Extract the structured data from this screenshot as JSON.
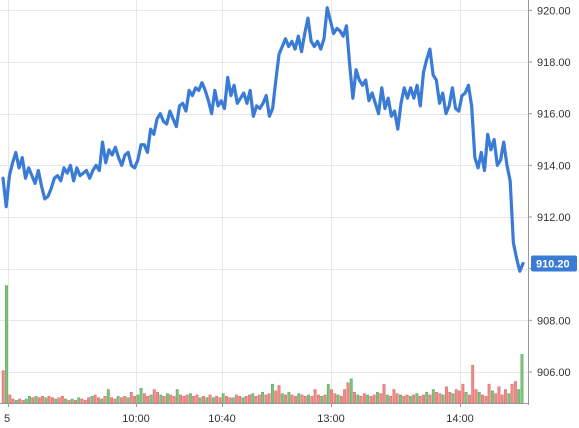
{
  "chart_data": {
    "type": "line",
    "title": "",
    "colors": {
      "line": "#3a7bd5",
      "volume_up": "#7cc47c",
      "volume_down": "#ef8a8a",
      "grid": "#e6e6e6",
      "price_tag": "#3a7bd5"
    },
    "x_tick_labels": [
      "5",
      "10:00",
      "10:40",
      "13:00",
      "14:00"
    ],
    "y_ticks": [
      906.0,
      908.0,
      910.0,
      912.0,
      914.0,
      916.0,
      918.0,
      920.0
    ],
    "y_tick_labels": [
      "906.00",
      "908.00",
      "",
      "912.00",
      "914.00",
      "916.00",
      "918.00",
      "920.00"
    ],
    "ylim": [
      904.8,
      920.4
    ],
    "last_price": 910.2,
    "last_price_label": "910.20",
    "grid": true,
    "series": [
      {
        "values": [
          913.5,
          912.4,
          913.6,
          914.1,
          914.5,
          913.9,
          914.3,
          913.5,
          913.9,
          913.6,
          913.3,
          913.8,
          913.2,
          912.7,
          912.8,
          913.1,
          913.5,
          913.6,
          913.4,
          913.9,
          913.7,
          914.0,
          913.4,
          913.9,
          913.6,
          913.7,
          913.8,
          913.5,
          913.8,
          914.0,
          913.8,
          914.9,
          914.1,
          914.6,
          914.4,
          914.7,
          914.3,
          914.0,
          914.4,
          914.5,
          914.0,
          913.9,
          914.2,
          914.8,
          914.8,
          914.5,
          915.4,
          915.2,
          915.8,
          916.0,
          915.7,
          915.6,
          916.1,
          915.8,
          915.5,
          916.3,
          916.4,
          916.1,
          916.9,
          916.7,
          917.0,
          916.9,
          917.2,
          916.9,
          916.5,
          916.0,
          916.9,
          916.3,
          916.5,
          916.2,
          917.4,
          916.7,
          917.1,
          916.4,
          916.6,
          916.8,
          916.4,
          916.9,
          915.9,
          916.3,
          916.2,
          916.4,
          916.7,
          915.9,
          916.2,
          917.3,
          918.3,
          918.6,
          918.9,
          918.6,
          918.8,
          918.5,
          919.0,
          918.4,
          919.1,
          919.7,
          918.8,
          918.6,
          918.8,
          918.5,
          918.9,
          920.1,
          919.6,
          919.1,
          919.3,
          919.2,
          919.0,
          919.4,
          917.9,
          916.6,
          917.7,
          917.3,
          917.1,
          917.3,
          916.5,
          916.8,
          916.4,
          916.0,
          917.0,
          916.2,
          916.6,
          915.9,
          916.1,
          915.4,
          916.4,
          917.0,
          916.6,
          917.0,
          916.6,
          917.1,
          916.3,
          917.6,
          918.1,
          918.5,
          917.5,
          917.3,
          916.4,
          916.8,
          916.0,
          916.3,
          917.0,
          916.2,
          916.1,
          916.7,
          916.8,
          917.1,
          916.3,
          914.3,
          913.9,
          914.5,
          913.8,
          915.2,
          914.6,
          915.0,
          914.0,
          914.2,
          914.9,
          914.0,
          913.4,
          911.0,
          910.4,
          909.9,
          910.2
        ]
      }
    ],
    "volume": [
      {
        "h": 0.24,
        "up": false
      },
      {
        "h": 0.87,
        "up": true
      },
      {
        "h": 0.06,
        "up": false
      },
      {
        "h": 0.03,
        "up": false
      },
      {
        "h": 0.02,
        "up": true
      },
      {
        "h": 0.03,
        "up": false
      },
      {
        "h": 0.02,
        "up": false
      },
      {
        "h": 0.03,
        "up": true
      },
      {
        "h": 0.05,
        "up": true
      },
      {
        "h": 0.04,
        "up": false
      },
      {
        "h": 0.05,
        "up": true
      },
      {
        "h": 0.04,
        "up": false
      },
      {
        "h": 0.05,
        "up": false
      },
      {
        "h": 0.04,
        "up": true
      },
      {
        "h": 0.05,
        "up": false
      },
      {
        "h": 0.04,
        "up": false
      },
      {
        "h": 0.03,
        "up": true
      },
      {
        "h": 0.04,
        "up": false
      },
      {
        "h": 0.05,
        "up": false
      },
      {
        "h": 0.03,
        "up": true
      },
      {
        "h": 0.02,
        "up": false
      },
      {
        "h": 0.03,
        "up": true
      },
      {
        "h": 0.02,
        "up": false
      },
      {
        "h": 0.04,
        "up": true
      },
      {
        "h": 0.03,
        "up": false
      },
      {
        "h": 0.02,
        "up": false
      },
      {
        "h": 0.04,
        "up": false
      },
      {
        "h": 0.05,
        "up": true
      },
      {
        "h": 0.06,
        "up": false
      },
      {
        "h": 0.04,
        "up": false
      },
      {
        "h": 0.03,
        "up": true
      },
      {
        "h": 0.05,
        "up": false
      },
      {
        "h": 0.1,
        "up": true
      },
      {
        "h": 0.04,
        "up": false
      },
      {
        "h": 0.03,
        "up": false
      },
      {
        "h": 0.05,
        "up": true
      },
      {
        "h": 0.04,
        "up": false
      },
      {
        "h": 0.05,
        "up": false
      },
      {
        "h": 0.04,
        "up": true
      },
      {
        "h": 0.08,
        "up": false
      },
      {
        "h": 0.05,
        "up": false
      },
      {
        "h": 0.06,
        "up": true
      },
      {
        "h": 0.11,
        "up": true
      },
      {
        "h": 0.07,
        "up": false
      },
      {
        "h": 0.05,
        "up": false
      },
      {
        "h": 0.06,
        "up": true
      },
      {
        "h": 0.1,
        "up": false
      },
      {
        "h": 0.08,
        "up": false
      },
      {
        "h": 0.06,
        "up": true
      },
      {
        "h": 0.05,
        "up": false
      },
      {
        "h": 0.07,
        "up": true
      },
      {
        "h": 0.06,
        "up": false
      },
      {
        "h": 0.05,
        "up": false
      },
      {
        "h": 0.1,
        "up": true
      },
      {
        "h": 0.06,
        "up": false
      },
      {
        "h": 0.05,
        "up": false
      },
      {
        "h": 0.06,
        "up": false
      },
      {
        "h": 0.07,
        "up": true
      },
      {
        "h": 0.05,
        "up": false
      },
      {
        "h": 0.06,
        "up": false
      },
      {
        "h": 0.04,
        "up": true
      },
      {
        "h": 0.05,
        "up": false
      },
      {
        "h": 0.04,
        "up": true
      },
      {
        "h": 0.06,
        "up": false
      },
      {
        "h": 0.04,
        "up": true
      },
      {
        "h": 0.05,
        "up": false
      },
      {
        "h": 0.04,
        "up": false
      },
      {
        "h": 0.07,
        "up": true
      },
      {
        "h": 0.05,
        "up": false
      },
      {
        "h": 0.04,
        "up": false
      },
      {
        "h": 0.04,
        "up": true
      },
      {
        "h": 0.06,
        "up": false
      },
      {
        "h": 0.05,
        "up": false
      },
      {
        "h": 0.04,
        "up": true
      },
      {
        "h": 0.05,
        "up": false
      },
      {
        "h": 0.06,
        "up": false
      },
      {
        "h": 0.07,
        "up": true
      },
      {
        "h": 0.05,
        "up": false
      },
      {
        "h": 0.06,
        "up": false
      },
      {
        "h": 0.08,
        "up": true
      },
      {
        "h": 0.06,
        "up": false
      },
      {
        "h": 0.07,
        "up": false
      },
      {
        "h": 0.14,
        "up": true
      },
      {
        "h": 0.09,
        "up": false
      },
      {
        "h": 0.13,
        "up": false
      },
      {
        "h": 0.07,
        "up": true
      },
      {
        "h": 0.06,
        "up": false
      },
      {
        "h": 0.08,
        "up": true
      },
      {
        "h": 0.06,
        "up": false
      },
      {
        "h": 0.05,
        "up": false
      },
      {
        "h": 0.07,
        "up": true
      },
      {
        "h": 0.06,
        "up": false
      },
      {
        "h": 0.05,
        "up": false
      },
      {
        "h": 0.06,
        "up": true
      },
      {
        "h": 0.05,
        "up": false
      },
      {
        "h": 0.1,
        "up": false
      },
      {
        "h": 0.06,
        "up": false
      },
      {
        "h": 0.05,
        "up": true
      },
      {
        "h": 0.06,
        "up": false
      },
      {
        "h": 0.14,
        "up": true
      },
      {
        "h": 0.1,
        "up": false
      },
      {
        "h": 0.07,
        "up": false
      },
      {
        "h": 0.06,
        "up": true
      },
      {
        "h": 0.05,
        "up": false
      },
      {
        "h": 0.1,
        "up": false
      },
      {
        "h": 0.15,
        "up": false
      },
      {
        "h": 0.18,
        "up": true
      },
      {
        "h": 0.08,
        "up": false
      },
      {
        "h": 0.06,
        "up": true
      },
      {
        "h": 0.05,
        "up": false
      },
      {
        "h": 0.07,
        "up": false
      },
      {
        "h": 0.06,
        "up": true
      },
      {
        "h": 0.05,
        "up": false
      },
      {
        "h": 0.06,
        "up": false
      },
      {
        "h": 0.08,
        "up": true
      },
      {
        "h": 0.07,
        "up": false
      },
      {
        "h": 0.14,
        "up": false
      },
      {
        "h": 0.06,
        "up": true
      },
      {
        "h": 0.05,
        "up": false
      },
      {
        "h": 0.1,
        "up": false
      },
      {
        "h": 0.07,
        "up": false
      },
      {
        "h": 0.06,
        "up": true
      },
      {
        "h": 0.05,
        "up": false
      },
      {
        "h": 0.06,
        "up": false
      },
      {
        "h": 0.05,
        "up": true
      },
      {
        "h": 0.06,
        "up": false
      },
      {
        "h": 0.07,
        "up": true
      },
      {
        "h": 0.05,
        "up": false
      },
      {
        "h": 0.06,
        "up": false
      },
      {
        "h": 0.08,
        "up": true
      },
      {
        "h": 0.06,
        "up": false
      },
      {
        "h": 0.1,
        "up": true
      },
      {
        "h": 0.08,
        "up": false
      },
      {
        "h": 0.07,
        "up": false
      },
      {
        "h": 0.06,
        "up": true
      },
      {
        "h": 0.12,
        "up": false
      },
      {
        "h": 0.08,
        "up": false
      },
      {
        "h": 0.07,
        "up": true
      },
      {
        "h": 0.1,
        "up": false
      },
      {
        "h": 0.09,
        "up": false
      },
      {
        "h": 0.14,
        "up": false
      },
      {
        "h": 0.08,
        "up": true
      },
      {
        "h": 0.06,
        "up": false
      },
      {
        "h": 0.28,
        "up": false
      },
      {
        "h": 0.1,
        "up": false
      },
      {
        "h": 0.08,
        "up": true
      },
      {
        "h": 0.06,
        "up": false
      },
      {
        "h": 0.05,
        "up": false
      },
      {
        "h": 0.14,
        "up": false
      },
      {
        "h": 0.09,
        "up": true
      },
      {
        "h": 0.07,
        "up": false
      },
      {
        "h": 0.12,
        "up": false
      },
      {
        "h": 0.06,
        "up": false
      },
      {
        "h": 0.1,
        "up": false
      },
      {
        "h": 0.07,
        "up": true
      },
      {
        "h": 0.14,
        "up": false
      },
      {
        "h": 0.16,
        "up": false
      },
      {
        "h": 0.1,
        "up": true
      },
      {
        "h": 0.36,
        "up": true
      }
    ]
  }
}
